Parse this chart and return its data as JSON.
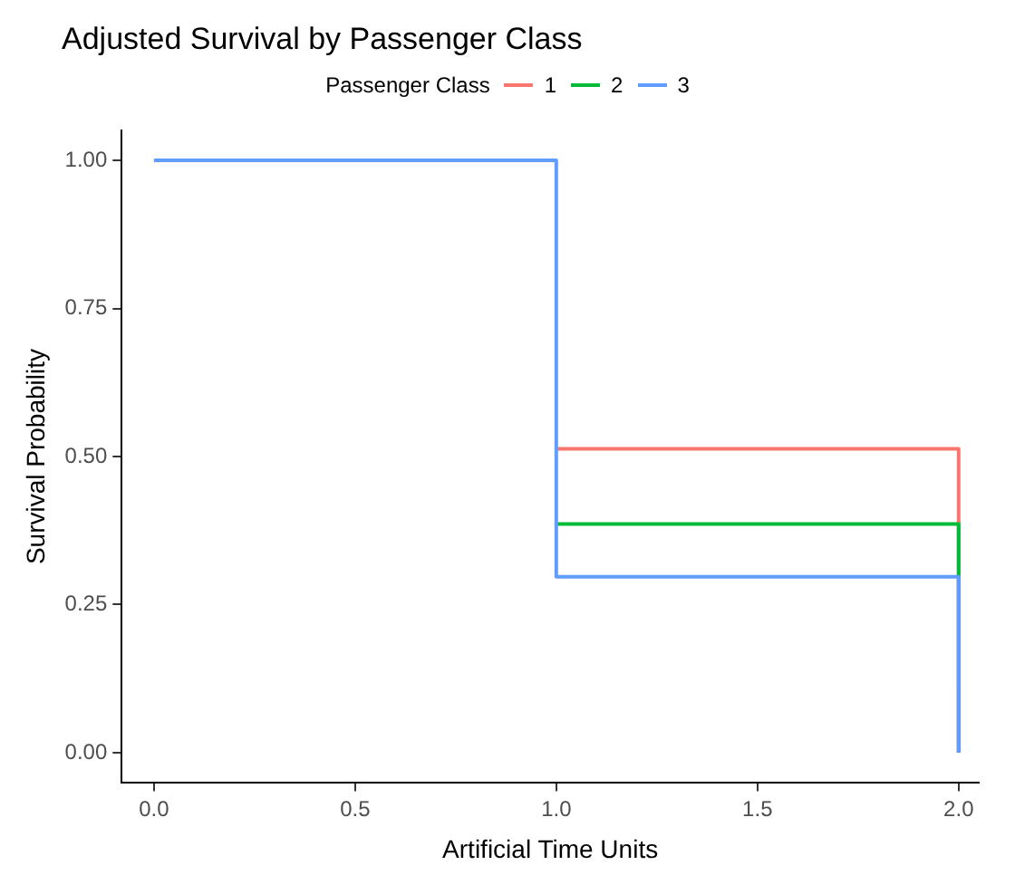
{
  "chart_data": {
    "type": "step",
    "title": "Adjusted Survival by Passenger Class",
    "xlabel": "Artificial Time Units",
    "ylabel": "Survival Probability",
    "legend_title": "Passenger Class",
    "x": [
      0,
      1,
      2
    ],
    "series": [
      {
        "name": "1",
        "color": "#f8766d",
        "values": [
          null,
          0.513,
          0
        ]
      },
      {
        "name": "2",
        "color": "#00ba38",
        "values": [
          null,
          0.386,
          0
        ]
      },
      {
        "name": "3",
        "color": "#619cff",
        "values": [
          1,
          0.297,
          0
        ]
      }
    ],
    "xlim": [
      -0.08,
      2.05
    ],
    "xticks": [
      {
        "value": 0,
        "label": "0.0"
      },
      0.5,
      {
        "value": 1,
        "label": "1.0"
      },
      1.5,
      {
        "value": 2,
        "label": "2.0"
      }
    ],
    "ylim": [
      -0.05,
      1.05
    ],
    "yticks": [
      {
        "value": 0,
        "label": "0.00"
      },
      0.25,
      {
        "value": 0.5,
        "label": "0.50"
      },
      0.75,
      {
        "value": 1,
        "label": "1.00"
      }
    ],
    "grid": false,
    "legend": "top",
    "marker": "none",
    "line_style": "solid"
  }
}
